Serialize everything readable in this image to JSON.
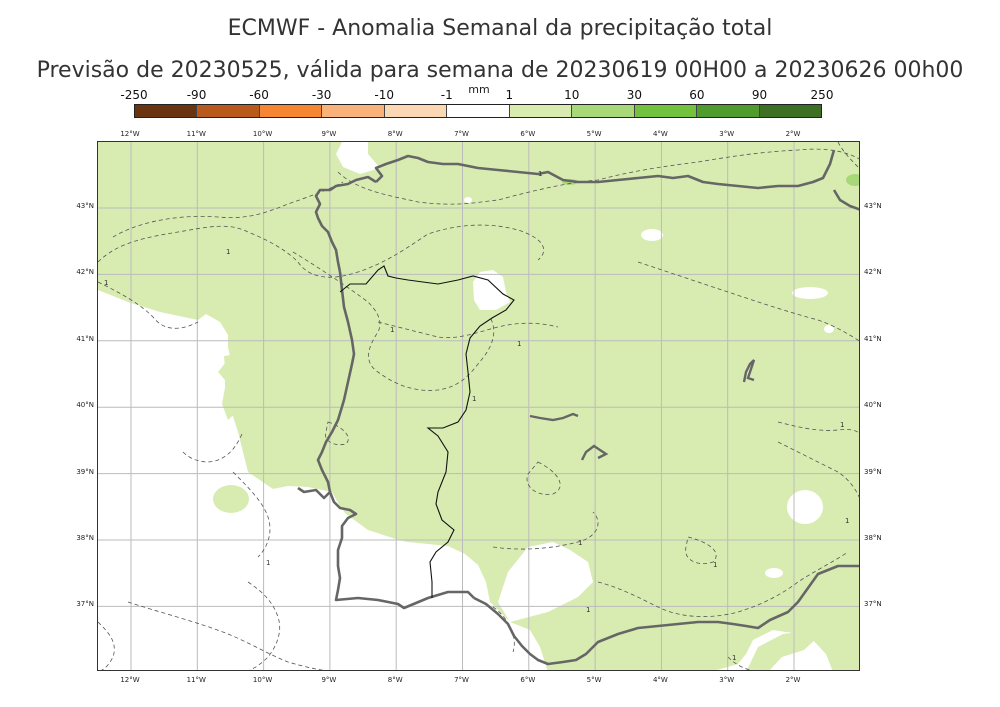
{
  "title_line1": "ECMWF - Anomalia Semanal da precipitação total",
  "title_line2": "Previsão de 20230525, válida para semana de 20230619 00H00 a 20230626 00h00",
  "colorbar": {
    "unit": "mm",
    "levels": [
      "-250",
      "-90",
      "-60",
      "-30",
      "-10",
      "-1",
      "1",
      "10",
      "30",
      "60",
      "90",
      "250"
    ],
    "colors": [
      "#6b3410",
      "#b85a1d",
      "#f58632",
      "#f9b27a",
      "#fcd7b3",
      "#ffffff",
      "#d8ecb2",
      "#a9d878",
      "#74c13f",
      "#4f9c2c",
      "#3d7024"
    ]
  },
  "longitude_ticks": [
    "12°W",
    "11°W",
    "10°W",
    "9°W",
    "8°W",
    "7°W",
    "6°W",
    "5°W",
    "4°W",
    "3°W",
    "2°W"
  ],
  "latitude_ticks": [
    "43°N",
    "42°N",
    "41°N",
    "40°N",
    "39°N",
    "38°N",
    "37°N"
  ],
  "contour_labels": [
    "1",
    "1",
    "1",
    "1",
    "1",
    "1",
    "1",
    "1",
    "1",
    "1",
    "1",
    "1",
    "1"
  ],
  "map_colors": {
    "anomaly_fill": "#d8ecb2",
    "anomaly_strong": "#a9d878",
    "coastline": "#666666",
    "border": "#111111",
    "gridline": "#bbbbbb",
    "contour": "#555555"
  }
}
